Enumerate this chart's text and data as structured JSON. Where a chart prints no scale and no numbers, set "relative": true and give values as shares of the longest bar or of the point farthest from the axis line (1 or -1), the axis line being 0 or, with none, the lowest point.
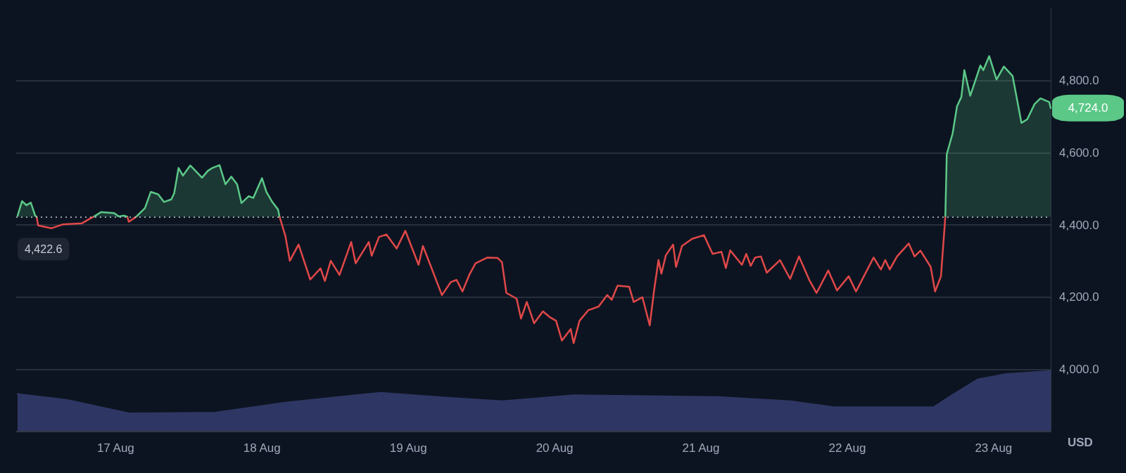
{
  "chart_data": [
    {
      "type": "area",
      "ylabel": "USD",
      "xlim": [
        "--08-16T07:41",
        "--08-23T09:22"
      ],
      "xticks": [
        {
          "value": "--08-17",
          "label": "17 Aug"
        },
        {
          "value": "--08-18",
          "label": "18 Aug"
        },
        {
          "value": "--08-19",
          "label": "19 Aug"
        },
        {
          "value": "--08-20",
          "label": "20 Aug"
        },
        {
          "value": "--08-21",
          "label": "21 Aug"
        },
        {
          "value": "--08-22",
          "label": "22 Aug"
        },
        {
          "value": "--08-23",
          "label": "23 Aug"
        }
      ],
      "ylim": [
        3830,
        5000
      ],
      "yticks": [
        {
          "value": 4000,
          "label": "4,000.0"
        },
        {
          "value": 4200,
          "label": "4,200.0"
        },
        {
          "value": 4400,
          "label": "4,400.0"
        },
        {
          "value": 4600,
          "label": "4,600.0"
        },
        {
          "value": 4800,
          "label": "4,800.0"
        }
      ],
      "grid": "y",
      "marker": "none",
      "ref_lines": [
        {
          "axis": "y",
          "value": 4422.6,
          "label": "4,422.6",
          "color": "#c9ccd6",
          "line_style": "dotted"
        }
      ],
      "annotations": [
        {
          "text": "4,724.0",
          "x": "--08-23T09:22",
          "y": 4724
        }
      ],
      "series": [
        {
          "color": "#5bc887",
          "x": [
            "--08-16T07:55",
            "--08-16T08:38",
            "--08-16T09:22",
            "--08-16T10:05",
            "--08-16T10:48",
            "--08-16T11:02",
            "--08-16T14:24",
            "--08-16T20:24",
            "--08-16T21:36",
            "--08-16T23:46",
            "--08-17T00:29",
            "--08-17T01:26",
            "--08-17T01:55",
            "--08-17T02:38",
            "--08-17T03:22",
            "--08-17T04:48",
            "--08-17T05:46",
            "--08-17T06:58",
            "--08-17T07:55",
            "--08-17T09:07",
            "--08-17T09:36",
            "--08-17T10:19",
            "--08-17T11:02",
            "--08-17T12:14",
            "--08-17T13:26",
            "--08-17T14:10",
            "--08-17T15:07",
            "--08-17T15:50",
            "--08-17T17:02",
            "--08-17T18:00",
            "--08-17T18:58",
            "--08-17T19:55",
            "--08-17T20:38",
            "--08-17T21:50",
            "--08-17T22:34",
            "--08-18T00:00",
            "--08-18T00:43",
            "--08-18T01:41",
            "--08-18T02:38",
            "--08-18T02:53",
            "--08-20T00:00",
            "--08-22T16:05",
            "--08-22T16:19",
            "--08-22T17:17",
            "--08-22T18:00",
            "--08-22T18:43",
            "--08-22T19:12",
            "--08-22T20:10",
            "--08-22T21:50",
            "--08-22T22:19",
            "--08-22T23:17",
            "--08-23T00:29",
            "--08-23T01:41",
            "--08-23T03:07",
            "--08-23T04:34",
            "--08-23T05:31",
            "--08-23T06:43",
            "--08-23T07:41",
            "--08-23T09:07",
            "--08-23T09:22"
          ],
          "values": [
            4426,
            4466,
            4455,
            4462,
            4426,
            4423,
            null,
            4423,
            4436,
            4433,
            4424,
            4426,
            4423,
            null,
            4423,
            4447,
            4492,
            4485,
            4464,
            4471,
            4488,
            4558,
            4537,
            4565,
            4544,
            4531,
            4550,
            4558,
            4566,
            4513,
            4534,
            4513,
            4461,
            4480,
            4475,
            4530,
            4492,
            4464,
            4443,
            4423,
            null,
            4423,
            4596,
            4654,
            4729,
            4755,
            4829,
            4758,
            4842,
            4829,
            4868,
            4803,
            4839,
            4813,
            4683,
            4693,
            4735,
            4751,
            4741,
            4724
          ]
        },
        {
          "type": "line",
          "color": "#e04848",
          "x": [
            "--08-16T11:02",
            "--08-16T11:17",
            "--08-16T13:26",
            "--08-16T15:22",
            "--08-16T18:29",
            "--08-16T19:55",
            "--08-16T20:24",
            "--08-16T22:48",
            "--08-17T01:55",
            "--08-17T02:10",
            "--08-17T03:22",
            "--08-17T14:24",
            "--08-18T02:53",
            "--08-18T03:50",
            "--08-18T04:34",
            "--08-18T06:00",
            "--08-18T07:55",
            "--08-18T09:36",
            "--08-18T10:19",
            "--08-18T11:17",
            "--08-18T12:43",
            "--08-18T14:38",
            "--08-18T15:22",
            "--08-18T17:31",
            "--08-18T18:00",
            "--08-18T19:12",
            "--08-18T20:24",
            "--08-18T22:05",
            "--08-18T23:31",
            "--08-19T01:41",
            "--08-19T02:24",
            "--08-19T03:36",
            "--08-19T05:31",
            "--08-19T06:58",
            "--08-19T07:55",
            "--08-19T08:53",
            "--08-19T10:05",
            "--08-19T11:02",
            "--08-19T12:58",
            "--08-19T14:38",
            "--08-19T15:22",
            "--08-19T16:05",
            "--08-19T17:46",
            "--08-19T18:29",
            "--08-19T19:26",
            "--08-19T20:38",
            "--08-19T22:05",
            "--08-19T23:17",
            "--08-20T00:14",
            "--08-20T01:12",
            "--08-20T02:38",
            "--08-20T03:07",
            "--08-20T04:05",
            "--08-20T05:31",
            "--08-20T07:12",
            "--08-20T08:38",
            "--08-20T09:22",
            "--08-20T10:19",
            "--08-20T12:14",
            "--08-20T12:58",
            "--08-20T14:24",
            "--08-20T15:36",
            "--08-20T16:19",
            "--08-20T17:02",
            "--08-20T17:31",
            "--08-20T18:14",
            "--08-20T19:26",
            "--08-20T19:55",
            "--08-20T20:53",
            "--08-20T22:34",
            "--08-21T00:29",
            "--08-21T01:55",
            "--08-21T03:22",
            "--08-21T04:05",
            "--08-21T04:48",
            "--08-21T06:43",
            "--08-21T07:26",
            "--08-21T08:10",
            "--08-21T08:53",
            "--08-21T09:50",
            "--08-21T10:48",
            "--08-21T12:58",
            "--08-21T14:38",
            "--08-21T16:05",
            "--08-21T17:46",
            "--08-21T18:58",
            "--08-21T20:53",
            "--08-21T22:19",
            "--08-22T00:14",
            "--08-22T01:26",
            "--08-22T04:19",
            "--08-22T05:31",
            "--08-22T06:14",
            "--08-22T06:58",
            "--08-22T08:10",
            "--08-22T10:05",
            "--08-22T11:02",
            "--08-22T12:00",
            "--08-22T13:41",
            "--08-22T14:24",
            "--08-22T15:22",
            "--08-22T16:05"
          ],
          "values": [
            4423,
            4399,
            4391,
            4402,
            4405,
            4419,
            4423,
            null,
            4423,
            4409,
            4423,
            null,
            4423,
            4370,
            4301,
            4346,
            4249,
            4280,
            4245,
            4301,
            4262,
            4353,
            4294,
            4353,
            4315,
            4367,
            4374,
            4335,
            4384,
            4290,
            4342,
            4290,
            4206,
            4242,
            4248,
            4216,
            4265,
            4294,
            4310,
            4309,
            4297,
            4212,
            4196,
            4141,
            4187,
            4128,
            4161,
            4144,
            4135,
            4080,
            4112,
            4073,
            4135,
            4164,
            4174,
            4206,
            4193,
            4232,
            4229,
            4187,
            4200,
            4122,
            4219,
            4303,
            4265,
            4316,
            4346,
            4284,
            4342,
            4362,
            4372,
            4320,
            4326,
            4281,
            4330,
            4290,
            4320,
            4287,
            4310,
            4313,
            4268,
            4303,
            4251,
            4313,
            4248,
            4212,
            4274,
            4219,
            4258,
            4216,
            4310,
            4277,
            4303,
            4277,
            4313,
            4349,
            4313,
            4329,
            4284,
            4216,
            4258,
            4423
          ]
        }
      ]
    },
    {
      "type": "area",
      "relative": true,
      "color": "#2e3764",
      "xlim": [
        "--08-16T07:41",
        "--08-23T09:22"
      ],
      "marker": "none",
      "x": [
        "--08-16T07:55",
        "--08-16T16:05",
        "--08-17T02:10",
        "--08-17T16:19",
        "--08-18T04:05",
        "--08-18T19:26",
        "--08-19T06:00",
        "--08-19T15:22",
        "--08-20T03:07",
        "--08-21T02:53",
        "--08-21T14:38",
        "--08-21T21:50",
        "--08-22T14:10",
        "--08-22T16:34",
        "--08-22T21:22",
        "--08-23T02:10",
        "--08-23T09:22"
      ],
      "values": [
        0.62,
        0.52,
        0.3,
        0.31,
        0.48,
        0.64,
        0.56,
        0.5,
        0.6,
        0.57,
        0.5,
        0.4,
        0.4,
        0.56,
        0.86,
        0.95,
        1.0
      ]
    }
  ]
}
